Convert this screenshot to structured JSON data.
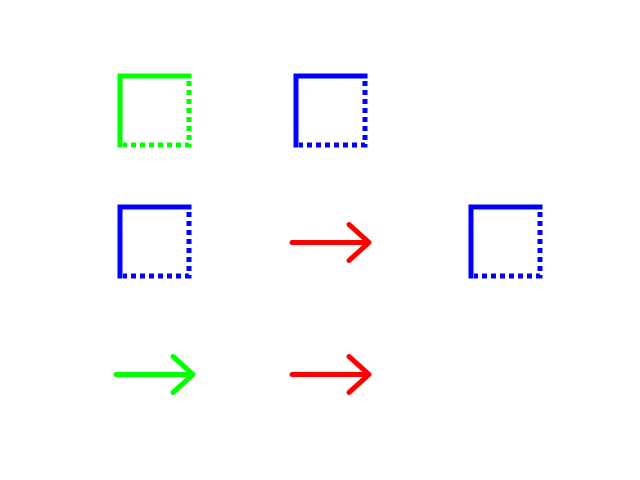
{
  "colors": {
    "background": "#ffffff",
    "green": "#00ff00",
    "blue": "#0000ff",
    "red": "#ff0000"
  },
  "grid": {
    "rows": 3,
    "columns": 3,
    "cells": [
      {
        "row": 1,
        "col": 1,
        "kind": "square",
        "color": "green",
        "icon": "half-dotted-square-icon"
      },
      {
        "row": 1,
        "col": 2,
        "kind": "square",
        "color": "blue",
        "icon": "half-dotted-square-icon"
      },
      {
        "row": 2,
        "col": 1,
        "kind": "square",
        "color": "blue",
        "icon": "half-dotted-square-icon"
      },
      {
        "row": 2,
        "col": 2,
        "kind": "arrow",
        "color": "red",
        "icon": "right-arrow-icon"
      },
      {
        "row": 2,
        "col": 3,
        "kind": "square",
        "color": "blue",
        "icon": "half-dotted-square-icon"
      },
      {
        "row": 3,
        "col": 1,
        "kind": "arrow",
        "color": "green",
        "icon": "right-arrow-icon"
      },
      {
        "row": 3,
        "col": 2,
        "kind": "arrow",
        "color": "red",
        "icon": "right-arrow-icon"
      }
    ]
  }
}
